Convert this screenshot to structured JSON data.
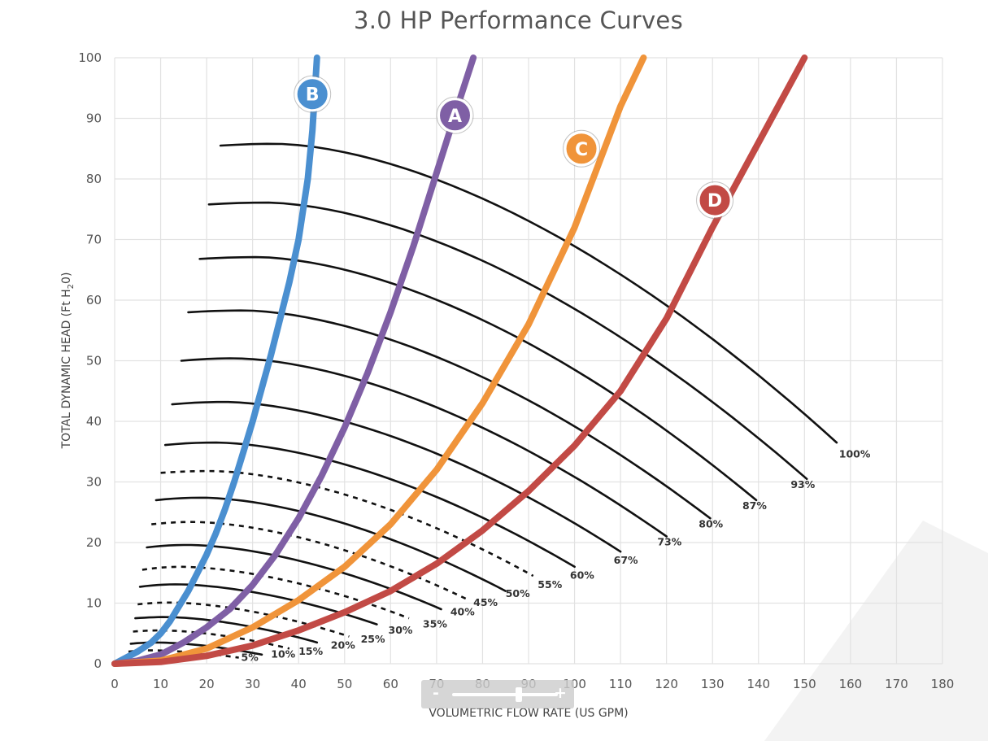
{
  "chart_data": {
    "type": "line",
    "title": "3.0 HP  Performance Curves",
    "xlabel": "VOLUMETRIC FLOW RATE (US GPM)",
    "ylabel_main": "TOTAL DYNAMIC HEAD (Ft H",
    "ylabel_sub": "2",
    "ylabel_end": "0)",
    "xlim": [
      0,
      180
    ],
    "ylim": [
      0,
      100
    ],
    "xticks": [
      0,
      10,
      20,
      30,
      40,
      50,
      60,
      70,
      80,
      90,
      100,
      110,
      120,
      130,
      140,
      150,
      160,
      170,
      180
    ],
    "yticks": [
      0,
      10,
      20,
      30,
      40,
      50,
      60,
      70,
      80,
      90,
      100
    ],
    "grid": true,
    "system_curves": [
      {
        "name": "B",
        "color": "#4a8fd0",
        "x": [
          0,
          5,
          8,
          10,
          12,
          14,
          16,
          18,
          20,
          22,
          24,
          26,
          28,
          30,
          32,
          34,
          36,
          38,
          40,
          42,
          43,
          44
        ],
        "y": [
          0,
          2,
          3.5,
          5,
          7,
          9.5,
          12,
          15,
          18,
          21.5,
          25.5,
          30,
          35,
          40,
          45.5,
          51,
          57,
          63,
          70,
          80,
          88,
          100
        ]
      },
      {
        "name": "A",
        "color": "#7f5fa5",
        "x": [
          0,
          5,
          10,
          15,
          20,
          25,
          30,
          35,
          40,
          45,
          50,
          55,
          60,
          65,
          70,
          75,
          78
        ],
        "y": [
          0,
          0.5,
          1.5,
          3.5,
          6,
          9,
          13,
          18,
          24,
          31,
          39,
          48,
          58,
          69,
          81,
          93,
          100
        ]
      },
      {
        "name": "C",
        "color": "#f0943a",
        "x": [
          0,
          10,
          20,
          30,
          40,
          50,
          60,
          70,
          80,
          90,
          100,
          110,
          115
        ],
        "y": [
          0,
          0.5,
          2.5,
          6,
          10.5,
          16,
          23,
          32,
          43,
          56,
          72,
          92,
          100
        ]
      },
      {
        "name": "D",
        "color": "#c24a45",
        "x": [
          0,
          10,
          20,
          30,
          40,
          50,
          60,
          70,
          80,
          90,
          100,
          110,
          120,
          130,
          140,
          150
        ],
        "y": [
          0,
          0.3,
          1.3,
          3,
          5.5,
          8.5,
          12,
          16.5,
          22,
          28.5,
          36,
          45,
          57,
          72,
          86,
          100
        ]
      }
    ],
    "badges": [
      {
        "label": "B",
        "x": 43,
        "y": 94
      },
      {
        "label": "A",
        "x": 74,
        "y": 90.5
      },
      {
        "label": "C",
        "x": 101.5,
        "y": 85
      },
      {
        "label": "D",
        "x": 130.5,
        "y": 76.5
      }
    ],
    "speed_curves": [
      {
        "label": "100%",
        "dashed": false,
        "x0": 23,
        "x1": 157,
        "y0": 85.5,
        "peakx": 35,
        "peak": 85.8,
        "y1": 36.5,
        "lx": 157.5,
        "ly": 34
      },
      {
        "label": "93%",
        "dashed": false,
        "x0": 20.5,
        "x1": 150.5,
        "y0": 75.8,
        "peakx": 33,
        "peak": 76.1,
        "y1": 30.5,
        "lx": 147,
        "ly": 29
      },
      {
        "label": "87%",
        "dashed": false,
        "x0": 18.5,
        "x1": 139.5,
        "y0": 66.8,
        "peakx": 31,
        "peak": 67.1,
        "y1": 27,
        "lx": 136.5,
        "ly": 25.5
      },
      {
        "label": "80%",
        "dashed": false,
        "x0": 16,
        "x1": 129.5,
        "y0": 58,
        "peakx": 28,
        "peak": 58.3,
        "y1": 24,
        "lx": 127,
        "ly": 22.5
      },
      {
        "label": "73%",
        "dashed": false,
        "x0": 14.5,
        "x1": 120,
        "y0": 50,
        "peakx": 26,
        "peak": 50.4,
        "y1": 21,
        "lx": 118,
        "ly": 19.5
      },
      {
        "label": "67%",
        "dashed": false,
        "x0": 12.5,
        "x1": 110,
        "y0": 42.8,
        "peakx": 24,
        "peak": 43.2,
        "y1": 18.5,
        "lx": 108.5,
        "ly": 16.5
      },
      {
        "label": "60%",
        "dashed": false,
        "x0": 11,
        "x1": 100,
        "y0": 36.1,
        "peakx": 22,
        "peak": 36.5,
        "y1": 16,
        "lx": 99,
        "ly": 14
      },
      {
        "label": "55%",
        "dashed": true,
        "x0": 10,
        "x1": 91,
        "y0": 31.5,
        "peakx": 21,
        "peak": 31.8,
        "y1": 14.5,
        "lx": 92,
        "ly": 12.5
      },
      {
        "label": "50%",
        "dashed": false,
        "x0": 9,
        "x1": 85,
        "y0": 27,
        "peakx": 19,
        "peak": 27.4,
        "y1": 12,
        "lx": 85,
        "ly": 11
      },
      {
        "label": "45%",
        "dashed": true,
        "x0": 8,
        "x1": 77,
        "y0": 23,
        "peakx": 17,
        "peak": 23.4,
        "y1": 10.5,
        "lx": 78,
        "ly": 9.5
      },
      {
        "label": "40%",
        "dashed": false,
        "x0": 7,
        "x1": 71,
        "y0": 19.2,
        "peakx": 16,
        "peak": 19.6,
        "y1": 9,
        "lx": 73,
        "ly": 8
      },
      {
        "label": "35%",
        "dashed": true,
        "x0": 6,
        "x1": 64,
        "y0": 15.5,
        "peakx": 14.5,
        "peak": 16,
        "y1": 7.5,
        "lx": 67,
        "ly": 6
      },
      {
        "label": "30%",
        "dashed": false,
        "x0": 5.5,
        "x1": 57,
        "y0": 12.7,
        "peakx": 13.5,
        "peak": 13.1,
        "y1": 6.5,
        "lx": 59.5,
        "ly": 5
      },
      {
        "label": "25%",
        "dashed": true,
        "x0": 5,
        "x1": 51,
        "y0": 9.8,
        "peakx": 12,
        "peak": 10.1,
        "y1": 4.5,
        "lx": 53.5,
        "ly": 3.5
      },
      {
        "label": "20%",
        "dashed": false,
        "x0": 4.5,
        "x1": 44,
        "y0": 7.5,
        "peakx": 11,
        "peak": 7.7,
        "y1": 3.5,
        "lx": 47,
        "ly": 2.5
      },
      {
        "label": "15%",
        "dashed": true,
        "x0": 4,
        "x1": 38,
        "y0": 5.3,
        "peakx": 10,
        "peak": 5.5,
        "y1": 2.5,
        "lx": 40,
        "ly": 1.5
      },
      {
        "label": "10%",
        "dashed": false,
        "x0": 3.5,
        "x1": 32,
        "y0": 3.3,
        "peakx": 9,
        "peak": 3.5,
        "y1": 1.5,
        "lx": 34,
        "ly": 1
      },
      {
        "label": "5%",
        "dashed": true,
        "x0": 3,
        "x1": 27,
        "y0": 2,
        "peakx": 8,
        "peak": 2.2,
        "y1": 1,
        "lx": 27.5,
        "ly": 0.5
      }
    ]
  },
  "zoom": {
    "minus": "-",
    "plus": "+",
    "level": 0.63
  }
}
